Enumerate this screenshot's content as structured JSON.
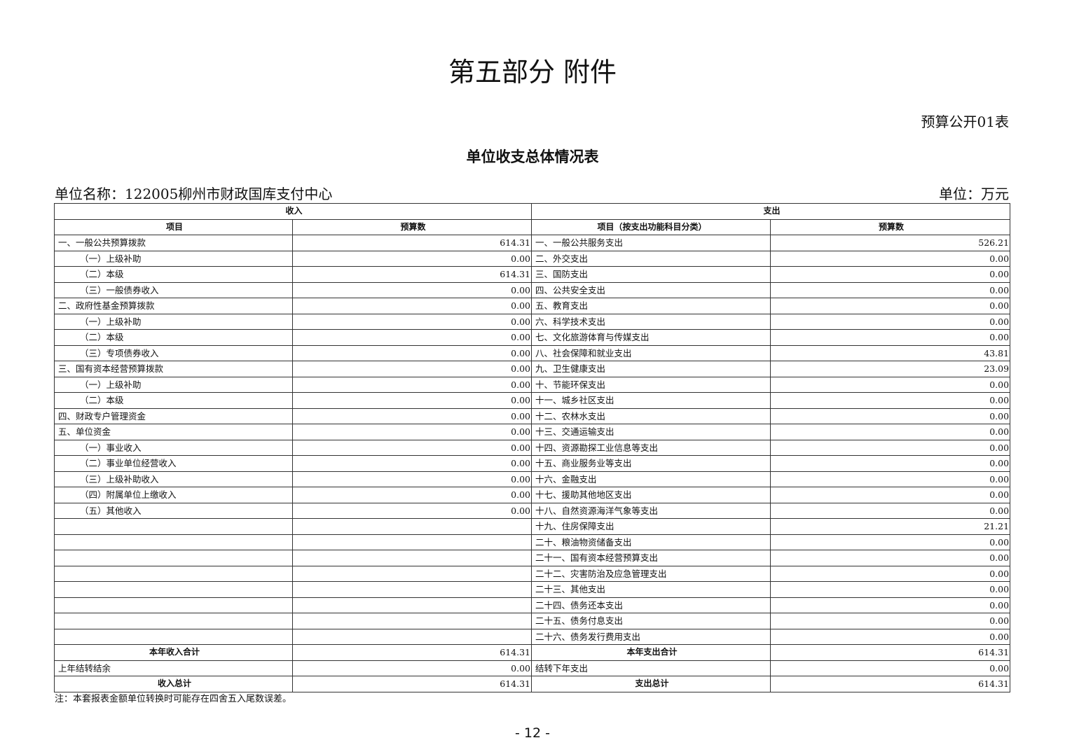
{
  "title": "第五部分  附件",
  "table_code": "预算公开01表",
  "table_title": "单位收支总体情况表",
  "unit_name": "单位名称：122005柳州市财政国库支付中心",
  "unit": "单位：万元",
  "headers": {
    "income": "收入",
    "expense": "支出",
    "item": "项目",
    "budget": "预算数",
    "exp_item": "项目（按支出功能科目分类）",
    "exp_budget": "预算数"
  },
  "rows": [
    [
      "一、一般公共预算拨款",
      "614.31",
      "一、一般公共服务支出",
      "526.21",
      0
    ],
    [
      "（一）上级补助",
      "0.00",
      "二、外交支出",
      "0.00",
      1
    ],
    [
      "（二）本级",
      "614.31",
      "三、国防支出",
      "0.00",
      1
    ],
    [
      "（三）一般债券收入",
      "0.00",
      "四、公共安全支出",
      "0.00",
      1
    ],
    [
      "二、政府性基金预算拨款",
      "0.00",
      "五、教育支出",
      "0.00",
      0
    ],
    [
      "（一）上级补助",
      "0.00",
      "六、科学技术支出",
      "0.00",
      1
    ],
    [
      "（二）本级",
      "0.00",
      "七、文化旅游体育与传媒支出",
      "0.00",
      1
    ],
    [
      "（三）专项债券收入",
      "0.00",
      "八、社会保障和就业支出",
      "43.81",
      1
    ],
    [
      "三、国有资本经营预算拨款",
      "0.00",
      "九、卫生健康支出",
      "23.09",
      0
    ],
    [
      "（一）上级补助",
      "0.00",
      "十、节能环保支出",
      "0.00",
      1
    ],
    [
      "（二）本级",
      "0.00",
      "十一、城乡社区支出",
      "0.00",
      1
    ],
    [
      "四、财政专户管理资金",
      "0.00",
      "十二、农林水支出",
      "0.00",
      0
    ],
    [
      "五、单位资金",
      "0.00",
      "十三、交通运输支出",
      "0.00",
      0
    ],
    [
      "（一）事业收入",
      "0.00",
      "十四、资源勘探工业信息等支出",
      "0.00",
      1
    ],
    [
      "（二）事业单位经营收入",
      "0.00",
      "十五、商业服务业等支出",
      "0.00",
      1
    ],
    [
      "（三）上级补助收入",
      "0.00",
      "十六、金融支出",
      "0.00",
      1
    ],
    [
      "（四）附属单位上缴收入",
      "0.00",
      "十七、援助其他地区支出",
      "0.00",
      1
    ],
    [
      "（五）其他收入",
      "0.00",
      "十八、自然资源海洋气象等支出",
      "0.00",
      1
    ],
    [
      "",
      "",
      "十九、住房保障支出",
      "21.21",
      0
    ],
    [
      "",
      "",
      "二十、粮油物资储备支出",
      "0.00",
      0
    ],
    [
      "",
      "",
      "二十一、国有资本经营预算支出",
      "0.00",
      0
    ],
    [
      "",
      "",
      "二十二、灾害防治及应急管理支出",
      "0.00",
      0
    ],
    [
      "",
      "",
      "二十三、其他支出",
      "0.00",
      0
    ],
    [
      "",
      "",
      "二十四、债务还本支出",
      "0.00",
      0
    ],
    [
      "",
      "",
      "二十五、债务付息支出",
      "0.00",
      0
    ],
    [
      "",
      "",
      "二十六、债务发行费用支出",
      "0.00",
      0
    ]
  ],
  "totals": {
    "year_income_label": "本年收入合计",
    "year_income": "614.31",
    "year_expense_label": "本年支出合计",
    "year_expense": "614.31",
    "carry_in_label": "上年结转结余",
    "carry_in": "0.00",
    "carry_out_label": "结转下年支出",
    "carry_out": "0.00",
    "income_total_label": "收入总计",
    "income_total": "614.31",
    "expense_total_label": "支出总计",
    "expense_total": "614.31"
  },
  "note": "注：本套报表金额单位转换时可能存在四舍五入尾数误差。",
  "page_number": "- 12 -"
}
